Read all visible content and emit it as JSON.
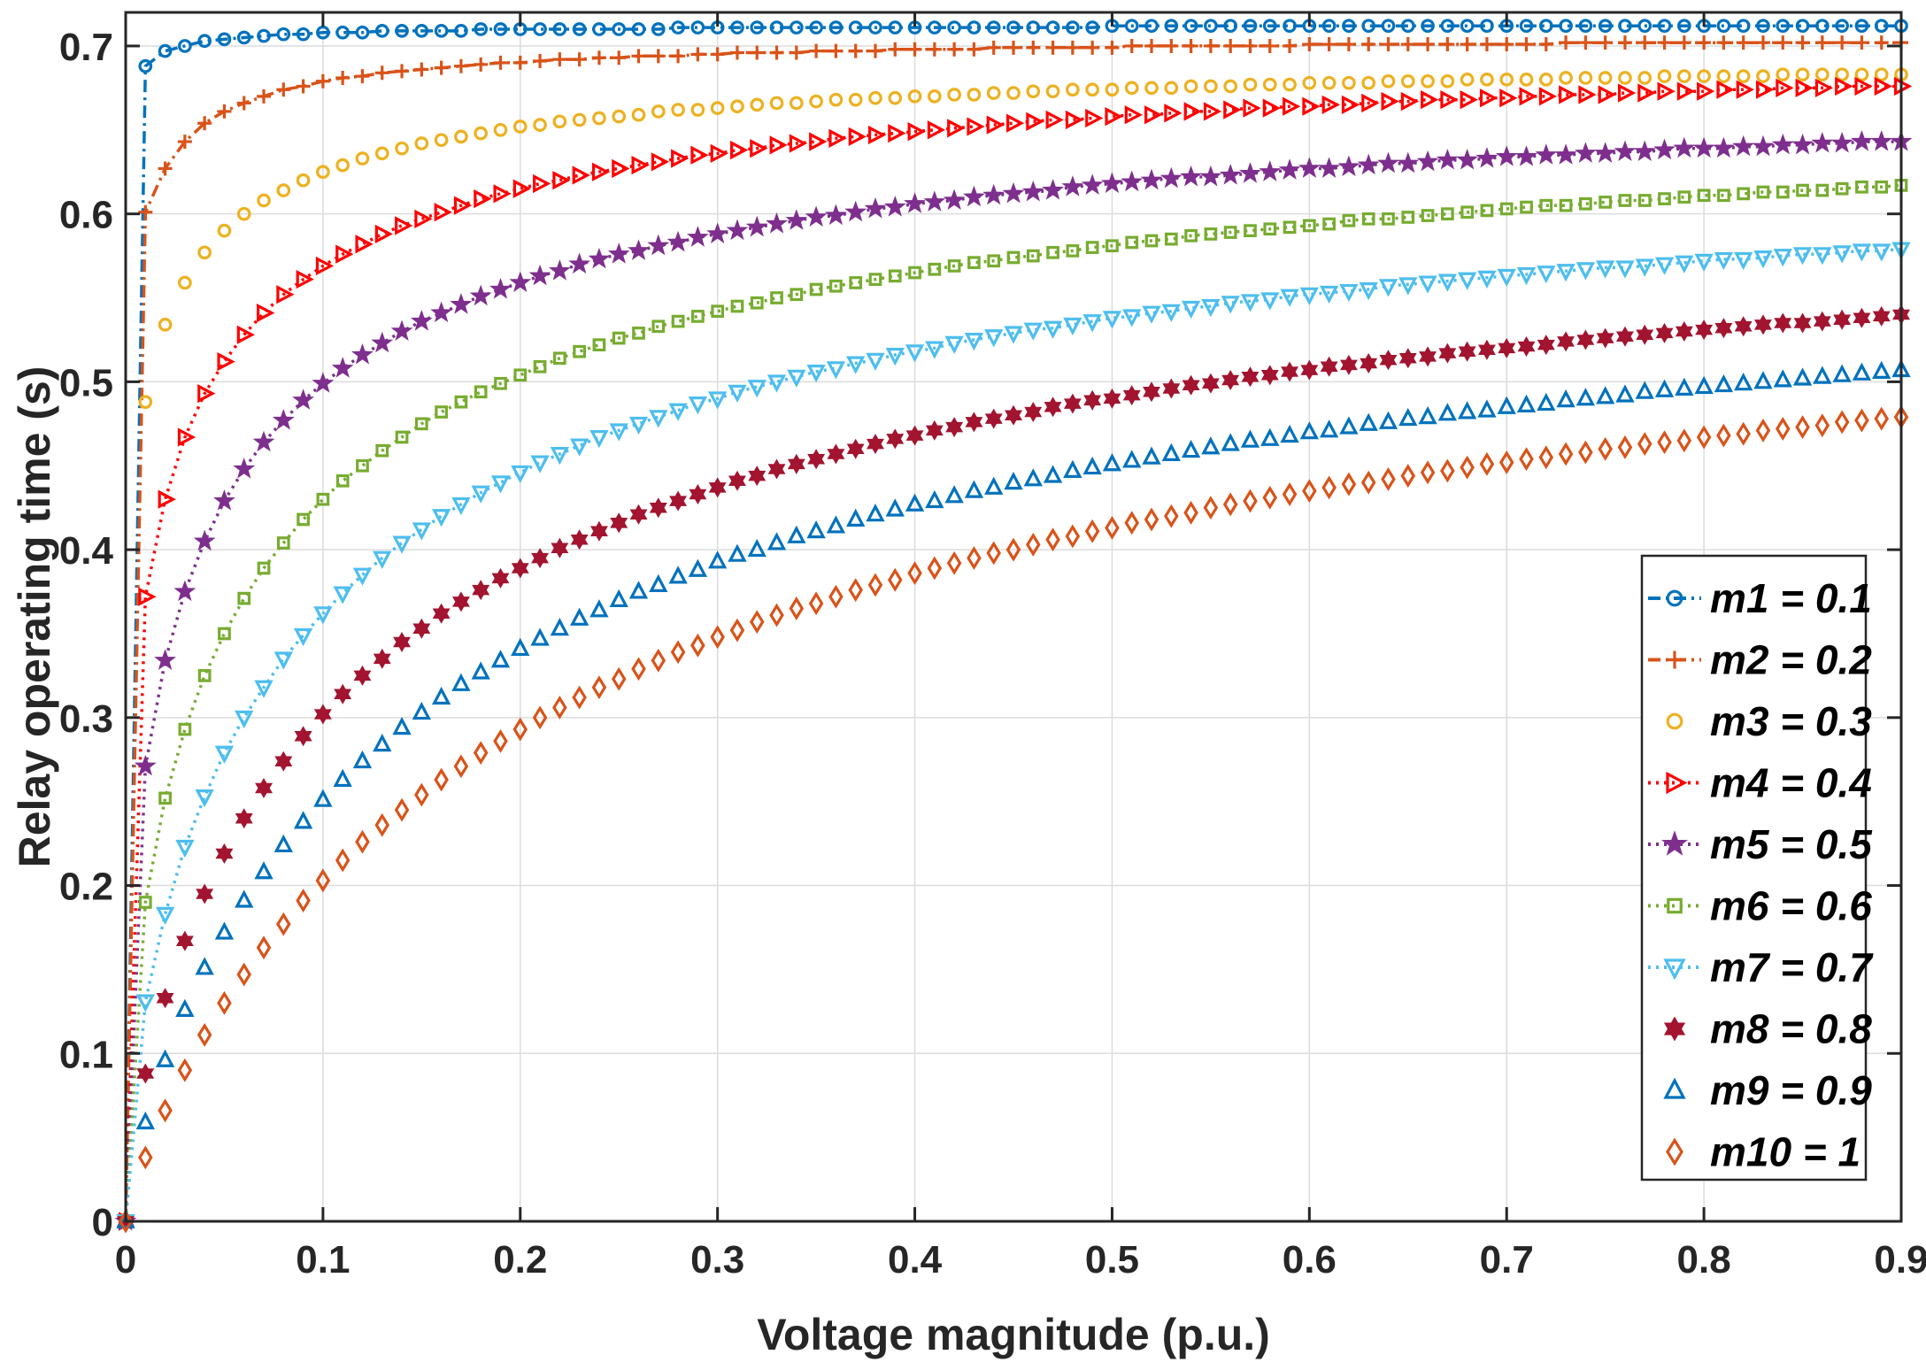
{
  "chart_data": {
    "type": "line",
    "title": "",
    "xlabel": "Voltage magnitude (p.u.)",
    "ylabel": "Relay operating time (s)",
    "xlim": [
      0,
      0.9
    ],
    "ylim": [
      0,
      0.72
    ],
    "xticks": [
      0,
      0.1,
      0.2,
      0.3,
      0.4,
      0.5,
      0.6,
      0.7,
      0.8,
      0.9
    ],
    "xtick_labels": [
      "0",
      "0.1",
      "0.2",
      "0.3",
      "0.4",
      "0.5",
      "0.6",
      "0.7",
      "0.8",
      "0.9"
    ],
    "yticks": [
      0,
      0.1,
      0.2,
      0.3,
      0.4,
      0.5,
      0.6,
      0.7
    ],
    "ytick_labels": [
      "0",
      "0.1",
      "0.2",
      "0.3",
      "0.4",
      "0.5",
      "0.6",
      "0.7"
    ],
    "grid": true,
    "legend_position": "bottom-right",
    "x_start": 0,
    "x_step": 0.01,
    "series": [
      {
        "name": "m1 = 0.1",
        "color": "#0072BD",
        "marker": "circle",
        "line": "dashdot",
        "values": [
          0,
          0.688,
          0.697,
          0.7,
          0.703,
          0.704,
          0.705,
          0.706,
          0.707,
          0.707,
          0.708,
          0.708,
          0.708,
          0.709,
          0.709,
          0.709,
          0.709,
          0.709,
          0.71,
          0.71,
          0.71,
          0.71,
          0.71,
          0.71,
          0.71,
          0.71,
          0.71,
          0.71,
          0.711,
          0.711,
          0.711,
          0.711,
          0.711,
          0.711,
          0.711,
          0.711,
          0.711,
          0.711,
          0.711,
          0.711,
          0.711,
          0.711,
          0.711,
          0.711,
          0.711,
          0.711,
          0.711,
          0.711,
          0.711,
          0.711,
          0.712,
          0.712,
          0.712,
          0.712,
          0.712,
          0.712,
          0.712,
          0.712,
          0.712,
          0.712,
          0.712,
          0.712,
          0.712,
          0.712,
          0.712,
          0.712,
          0.712,
          0.712,
          0.712,
          0.712,
          0.712,
          0.712,
          0.712,
          0.712,
          0.712,
          0.712,
          0.712,
          0.712,
          0.712,
          0.712,
          0.712,
          0.712,
          0.712,
          0.712,
          0.712,
          0.712,
          0.712,
          0.712,
          0.712,
          0.712,
          0.712
        ]
      },
      {
        "name": "m2 = 0.2",
        "color": "#D95319",
        "marker": "plus",
        "line": "dashdot",
        "values": [
          0,
          0.601,
          0.627,
          0.643,
          0.654,
          0.661,
          0.666,
          0.67,
          0.674,
          0.676,
          0.679,
          0.681,
          0.682,
          0.684,
          0.685,
          0.686,
          0.687,
          0.688,
          0.689,
          0.69,
          0.69,
          0.691,
          0.692,
          0.692,
          0.693,
          0.693,
          0.694,
          0.694,
          0.694,
          0.695,
          0.695,
          0.696,
          0.696,
          0.696,
          0.696,
          0.697,
          0.697,
          0.697,
          0.697,
          0.698,
          0.698,
          0.698,
          0.698,
          0.698,
          0.699,
          0.699,
          0.699,
          0.699,
          0.699,
          0.699,
          0.699,
          0.7,
          0.7,
          0.7,
          0.7,
          0.7,
          0.7,
          0.7,
          0.7,
          0.7,
          0.701,
          0.701,
          0.701,
          0.701,
          0.701,
          0.701,
          0.701,
          0.701,
          0.701,
          0.701,
          0.701,
          0.701,
          0.701,
          0.702,
          0.702,
          0.702,
          0.702,
          0.702,
          0.702,
          0.702,
          0.702,
          0.702,
          0.702,
          0.702,
          0.702,
          0.702,
          0.702,
          0.702,
          0.702,
          0.702,
          0.702
        ]
      },
      {
        "name": "m3 = 0.3",
        "color": "#EDB120",
        "marker": "circle",
        "line": "none",
        "values": [
          0,
          0.488,
          0.534,
          0.559,
          0.577,
          0.59,
          0.6,
          0.608,
          0.614,
          0.62,
          0.625,
          0.629,
          0.633,
          0.636,
          0.639,
          0.642,
          0.644,
          0.646,
          0.648,
          0.65,
          0.652,
          0.653,
          0.655,
          0.656,
          0.657,
          0.658,
          0.659,
          0.661,
          0.662,
          0.662,
          0.663,
          0.664,
          0.665,
          0.666,
          0.666,
          0.667,
          0.668,
          0.668,
          0.669,
          0.669,
          0.67,
          0.67,
          0.671,
          0.671,
          0.672,
          0.672,
          0.673,
          0.673,
          0.674,
          0.674,
          0.674,
          0.675,
          0.675,
          0.675,
          0.676,
          0.676,
          0.676,
          0.677,
          0.677,
          0.677,
          0.678,
          0.678,
          0.678,
          0.678,
          0.679,
          0.679,
          0.679,
          0.679,
          0.68,
          0.68,
          0.68,
          0.68,
          0.68,
          0.681,
          0.681,
          0.681,
          0.681,
          0.681,
          0.682,
          0.682,
          0.682,
          0.682,
          0.682,
          0.682,
          0.683,
          0.683,
          0.683,
          0.683,
          0.683,
          0.683,
          0.683
        ]
      },
      {
        "name": "m4 = 0.4",
        "color": "#FF0000",
        "marker": "triangle-right",
        "line": "dotted",
        "values": [
          0,
          0.372,
          0.43,
          0.467,
          0.493,
          0.512,
          0.528,
          0.541,
          0.552,
          0.561,
          0.569,
          0.576,
          0.582,
          0.588,
          0.593,
          0.597,
          0.601,
          0.605,
          0.609,
          0.612,
          0.615,
          0.618,
          0.62,
          0.623,
          0.625,
          0.627,
          0.629,
          0.631,
          0.633,
          0.635,
          0.636,
          0.638,
          0.639,
          0.641,
          0.642,
          0.643,
          0.645,
          0.646,
          0.647,
          0.648,
          0.649,
          0.65,
          0.651,
          0.652,
          0.653,
          0.654,
          0.655,
          0.656,
          0.656,
          0.657,
          0.658,
          0.659,
          0.659,
          0.66,
          0.661,
          0.661,
          0.662,
          0.663,
          0.663,
          0.664,
          0.664,
          0.665,
          0.665,
          0.666,
          0.667,
          0.667,
          0.668,
          0.668,
          0.668,
          0.669,
          0.669,
          0.67,
          0.67,
          0.671,
          0.671,
          0.671,
          0.672,
          0.672,
          0.673,
          0.673,
          0.673,
          0.674,
          0.674,
          0.674,
          0.675,
          0.675,
          0.675,
          0.676,
          0.676,
          0.676,
          0.676
        ]
      },
      {
        "name": "m5 = 0.5",
        "color": "#7E2F8E",
        "marker": "pentagram",
        "line": "dotted",
        "values": [
          0,
          0.271,
          0.334,
          0.375,
          0.405,
          0.429,
          0.448,
          0.464,
          0.477,
          0.489,
          0.499,
          0.508,
          0.516,
          0.523,
          0.53,
          0.536,
          0.541,
          0.546,
          0.551,
          0.555,
          0.559,
          0.563,
          0.566,
          0.57,
          0.573,
          0.576,
          0.578,
          0.581,
          0.583,
          0.586,
          0.588,
          0.59,
          0.592,
          0.594,
          0.596,
          0.598,
          0.599,
          0.601,
          0.603,
          0.604,
          0.606,
          0.607,
          0.608,
          0.61,
          0.611,
          0.612,
          0.613,
          0.614,
          0.616,
          0.617,
          0.618,
          0.619,
          0.62,
          0.621,
          0.622,
          0.622,
          0.623,
          0.624,
          0.625,
          0.626,
          0.627,
          0.627,
          0.628,
          0.629,
          0.63,
          0.63,
          0.631,
          0.632,
          0.632,
          0.633,
          0.634,
          0.634,
          0.635,
          0.635,
          0.636,
          0.636,
          0.637,
          0.637,
          0.638,
          0.639,
          0.639,
          0.639,
          0.64,
          0.64,
          0.641,
          0.641,
          0.642,
          0.642,
          0.643,
          0.643,
          0.643
        ]
      },
      {
        "name": "m6 = 0.6",
        "color": "#77AC30",
        "marker": "square",
        "line": "dotted",
        "values": [
          0,
          0.19,
          0.252,
          0.293,
          0.325,
          0.35,
          0.371,
          0.389,
          0.404,
          0.418,
          0.43,
          0.441,
          0.45,
          0.459,
          0.467,
          0.475,
          0.482,
          0.488,
          0.494,
          0.499,
          0.504,
          0.509,
          0.514,
          0.518,
          0.522,
          0.526,
          0.529,
          0.533,
          0.536,
          0.539,
          0.542,
          0.545,
          0.547,
          0.55,
          0.552,
          0.555,
          0.557,
          0.559,
          0.561,
          0.563,
          0.565,
          0.567,
          0.569,
          0.571,
          0.572,
          0.574,
          0.575,
          0.577,
          0.578,
          0.58,
          0.581,
          0.583,
          0.584,
          0.585,
          0.587,
          0.588,
          0.589,
          0.59,
          0.591,
          0.592,
          0.593,
          0.594,
          0.596,
          0.597,
          0.597,
          0.598,
          0.599,
          0.6,
          0.601,
          0.602,
          0.603,
          0.604,
          0.605,
          0.605,
          0.606,
          0.607,
          0.608,
          0.608,
          0.609,
          0.61,
          0.611,
          0.611,
          0.612,
          0.613,
          0.613,
          0.614,
          0.614,
          0.615,
          0.616,
          0.616,
          0.617
        ]
      },
      {
        "name": "m7 = 0.7",
        "color": "#4DBEEE",
        "marker": "triangle-down",
        "line": "dotted",
        "values": [
          0,
          0.131,
          0.183,
          0.223,
          0.253,
          0.279,
          0.3,
          0.318,
          0.335,
          0.349,
          0.362,
          0.374,
          0.385,
          0.395,
          0.404,
          0.412,
          0.42,
          0.427,
          0.434,
          0.44,
          0.446,
          0.452,
          0.457,
          0.462,
          0.467,
          0.471,
          0.475,
          0.479,
          0.483,
          0.487,
          0.49,
          0.494,
          0.497,
          0.5,
          0.503,
          0.506,
          0.508,
          0.511,
          0.513,
          0.516,
          0.518,
          0.52,
          0.523,
          0.525,
          0.527,
          0.529,
          0.531,
          0.532,
          0.534,
          0.536,
          0.538,
          0.539,
          0.541,
          0.542,
          0.544,
          0.545,
          0.547,
          0.548,
          0.549,
          0.551,
          0.552,
          0.553,
          0.554,
          0.555,
          0.557,
          0.558,
          0.559,
          0.56,
          0.561,
          0.562,
          0.563,
          0.564,
          0.565,
          0.566,
          0.567,
          0.568,
          0.568,
          0.569,
          0.57,
          0.571,
          0.572,
          0.573,
          0.573,
          0.574,
          0.575,
          0.576,
          0.576,
          0.577,
          0.578,
          0.578,
          0.579
        ]
      },
      {
        "name": "m8 = 0.8",
        "color": "#A2142F",
        "marker": "hexagram",
        "line": "none",
        "values": [
          0,
          0.088,
          0.133,
          0.167,
          0.195,
          0.219,
          0.24,
          0.258,
          0.274,
          0.289,
          0.302,
          0.314,
          0.325,
          0.335,
          0.345,
          0.353,
          0.362,
          0.369,
          0.376,
          0.383,
          0.389,
          0.395,
          0.401,
          0.406,
          0.411,
          0.416,
          0.421,
          0.425,
          0.429,
          0.433,
          0.437,
          0.441,
          0.444,
          0.448,
          0.451,
          0.454,
          0.457,
          0.46,
          0.463,
          0.466,
          0.468,
          0.471,
          0.473,
          0.476,
          0.478,
          0.48,
          0.482,
          0.485,
          0.487,
          0.489,
          0.49,
          0.492,
          0.494,
          0.496,
          0.498,
          0.499,
          0.501,
          0.503,
          0.504,
          0.506,
          0.507,
          0.509,
          0.51,
          0.511,
          0.513,
          0.514,
          0.515,
          0.517,
          0.518,
          0.519,
          0.52,
          0.521,
          0.522,
          0.524,
          0.525,
          0.526,
          0.527,
          0.528,
          0.529,
          0.53,
          0.531,
          0.532,
          0.533,
          0.534,
          0.535,
          0.535,
          0.536,
          0.537,
          0.538,
          0.539,
          0.54
        ]
      },
      {
        "name": "m9 = 0.9",
        "color": "#0072BD",
        "marker": "triangle-up",
        "line": "none",
        "values": [
          0,
          0.059,
          0.096,
          0.126,
          0.151,
          0.172,
          0.191,
          0.208,
          0.224,
          0.238,
          0.251,
          0.263,
          0.274,
          0.284,
          0.294,
          0.303,
          0.312,
          0.32,
          0.327,
          0.334,
          0.341,
          0.347,
          0.353,
          0.359,
          0.364,
          0.37,
          0.375,
          0.379,
          0.384,
          0.388,
          0.393,
          0.397,
          0.4,
          0.404,
          0.408,
          0.411,
          0.414,
          0.418,
          0.421,
          0.424,
          0.427,
          0.429,
          0.432,
          0.435,
          0.437,
          0.44,
          0.442,
          0.444,
          0.447,
          0.449,
          0.451,
          0.453,
          0.455,
          0.457,
          0.459,
          0.461,
          0.463,
          0.465,
          0.466,
          0.468,
          0.47,
          0.471,
          0.473,
          0.475,
          0.476,
          0.478,
          0.479,
          0.481,
          0.482,
          0.483,
          0.485,
          0.486,
          0.487,
          0.489,
          0.49,
          0.491,
          0.492,
          0.494,
          0.495,
          0.496,
          0.497,
          0.498,
          0.499,
          0.5,
          0.501,
          0.502,
          0.503,
          0.504,
          0.505,
          0.506,
          0.507
        ]
      },
      {
        "name": "m10 = 1",
        "color": "#D95319",
        "marker": "diamond",
        "line": "none",
        "values": [
          0,
          0.038,
          0.066,
          0.09,
          0.111,
          0.13,
          0.147,
          0.163,
          0.177,
          0.191,
          0.203,
          0.215,
          0.226,
          0.236,
          0.245,
          0.254,
          0.263,
          0.271,
          0.279,
          0.286,
          0.293,
          0.3,
          0.306,
          0.312,
          0.318,
          0.323,
          0.329,
          0.334,
          0.339,
          0.343,
          0.348,
          0.352,
          0.357,
          0.361,
          0.365,
          0.368,
          0.372,
          0.376,
          0.379,
          0.382,
          0.386,
          0.389,
          0.392,
          0.395,
          0.398,
          0.4,
          0.403,
          0.406,
          0.408,
          0.411,
          0.413,
          0.416,
          0.418,
          0.42,
          0.422,
          0.425,
          0.427,
          0.429,
          0.431,
          0.433,
          0.435,
          0.437,
          0.439,
          0.44,
          0.442,
          0.444,
          0.446,
          0.447,
          0.449,
          0.451,
          0.452,
          0.454,
          0.455,
          0.457,
          0.458,
          0.46,
          0.461,
          0.463,
          0.464,
          0.465,
          0.467,
          0.468,
          0.469,
          0.471,
          0.472,
          0.473,
          0.474,
          0.476,
          0.477,
          0.478,
          0.479
        ]
      }
    ]
  }
}
